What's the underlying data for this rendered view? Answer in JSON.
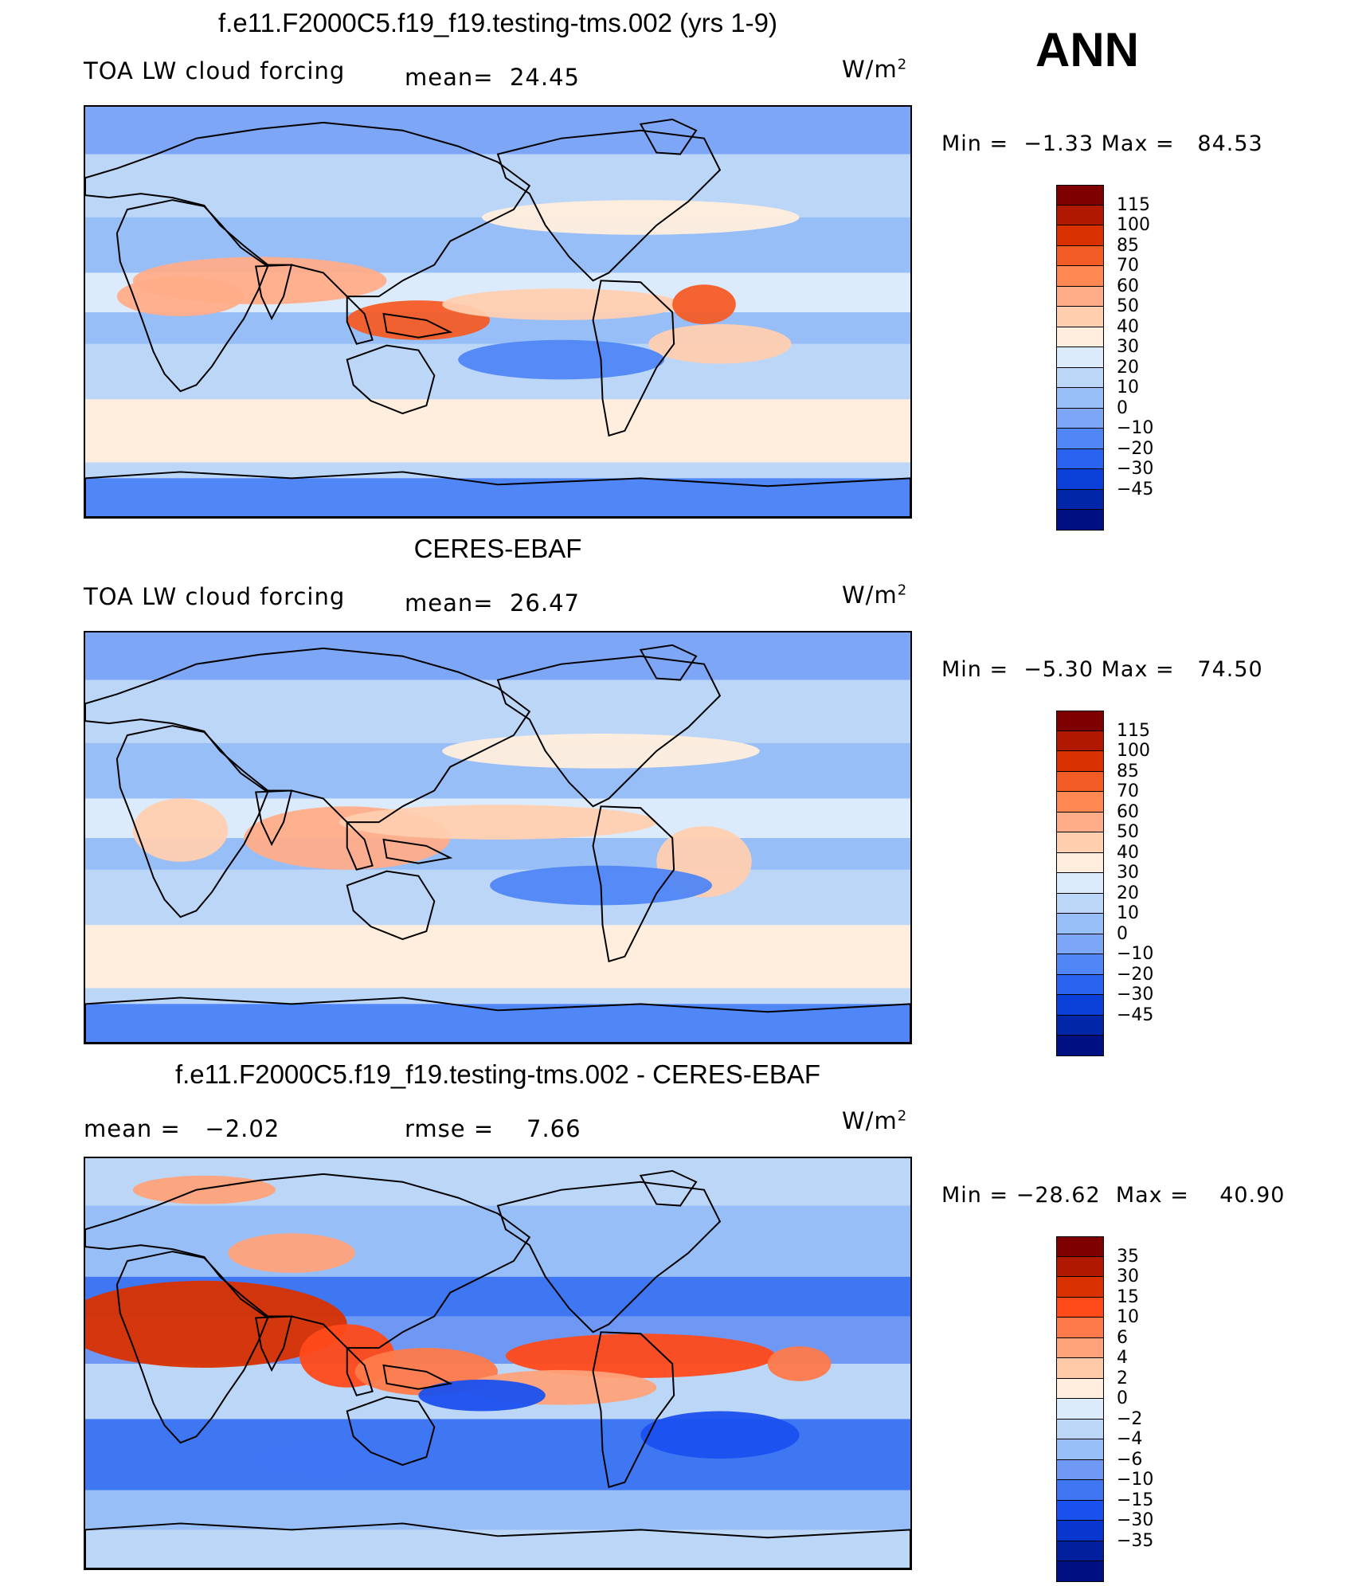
{
  "season": "ANN",
  "colors": {
    "abs": [
      "#7f0000",
      "#b01800",
      "#d93200",
      "#f45c26",
      "#ff8752",
      "#ffad89",
      "#ffcfb0",
      "#ffeedd",
      "#dcebfb",
      "#bcd6f8",
      "#98bef7",
      "#7ea6f7",
      "#5086f5",
      "#2a63f0",
      "#0a3fd8",
      "#0226a8",
      "#000f82"
    ],
    "diff": [
      "#7f0000",
      "#b01800",
      "#d93200",
      "#ff4a1a",
      "#ff7a4a",
      "#ffa27a",
      "#ffcaa8",
      "#ffeedd",
      "#dcebfb",
      "#bcd6f8",
      "#98bef7",
      "#6f98f5",
      "#3f76f2",
      "#1a50ee",
      "#0a36d0",
      "#02209d",
      "#000f82"
    ]
  },
  "panels": [
    {
      "title": "f.e11.F2000C5.f19_f19.testing-tms.002 (yrs 1-9)",
      "left_label": "TOA LW cloud forcing",
      "mid_label": "mean=",
      "mid_value": "24.45",
      "units_base": "W/m",
      "units_exp": "2",
      "min_label": "Min =",
      "min_value": "−1.33",
      "max_label": "Max =",
      "max_value": "84.53",
      "kind": "abs",
      "ticks": [
        "115",
        "100",
        "85",
        "70",
        "60",
        "50",
        "40",
        "30",
        "20",
        "10",
        "0",
        "−10",
        "−20",
        "−30",
        "−45"
      ]
    },
    {
      "title": "CERES-EBAF",
      "left_label": "TOA LW cloud forcing",
      "mid_label": "mean=",
      "mid_value": "26.47",
      "units_base": "W/m",
      "units_exp": "2",
      "min_label": "Min =",
      "min_value": "−5.30",
      "max_label": "Max =",
      "max_value": "74.50",
      "kind": "abs",
      "ticks": [
        "115",
        "100",
        "85",
        "70",
        "60",
        "50",
        "40",
        "30",
        "20",
        "10",
        "0",
        "−10",
        "−20",
        "−30",
        "−45"
      ]
    },
    {
      "title": "f.e11.F2000C5.f19_f19.testing-tms.002 - CERES-EBAF",
      "left_label": "mean =",
      "left_value": "−2.02",
      "mid_label": "rmse =",
      "mid_value": "7.66",
      "units_base": "W/m",
      "units_exp": "2",
      "min_label": "Min =",
      "min_value": "−28.62",
      "max_label": "Max =",
      "max_value": "40.90",
      "kind": "diff",
      "ticks": [
        "35",
        "30",
        "15",
        "10",
        "6",
        "4",
        "2",
        "0",
        "−2",
        "−4",
        "−6",
        "−10",
        "−15",
        "−30",
        "−35"
      ]
    }
  ]
}
